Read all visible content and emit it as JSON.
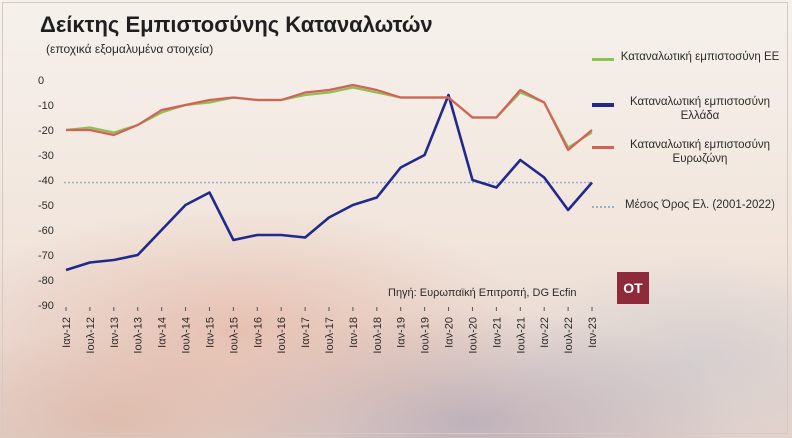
{
  "header": {
    "title": "Δείκτης Εμπιστοσύνης Καταναλωτών",
    "subtitle": "(εποχικά εξομαλυμένα στοιχεία)"
  },
  "source": "Πηγή: Ευρωπαϊκή Επιτροπή, DG Ecfin",
  "logo_text": "OT",
  "colors": {
    "eu": "#8cc152",
    "greece": "#1f2a8c",
    "eurozone": "#d4605a",
    "average": "#9ab0c6",
    "logo": "#8e2a3a"
  },
  "chart_data": {
    "type": "line",
    "title": "Δείκτης Εμπιστοσύνης Καταναλωτών",
    "subtitle": "(εποχικά εξομαλυμένα στοιχεία)",
    "y_ticks": [
      0,
      -10,
      -20,
      -30,
      -40,
      -50,
      -60,
      -70,
      -80,
      -90
    ],
    "ylim": [
      -90,
      0
    ],
    "grid": false,
    "legend_position": "right",
    "x_tick_labels": [
      "Ιαν-12",
      "Ιουλ-12",
      "Ιαν-13",
      "Ιουλ-13",
      "Ιαν-14",
      "Ιουλ-14",
      "Ιαν-15",
      "Ιουλ-15",
      "Ιαν-16",
      "Ιουλ-16",
      "Ιαν-17",
      "Ιουλ-17",
      "Ιαν-18",
      "Ιουλ-18",
      "Ιαν-19",
      "Ιουλ-19",
      "Ιαν-20",
      "Ιουλ-20",
      "Ιαν-21",
      "Ιουλ-21",
      "Ιαν-22",
      "Ιουλ-22",
      "Ιαν-23"
    ],
    "series": [
      {
        "name": "Καταναλωτική εμπιστοσύνη ΕΕ",
        "key": "eu",
        "points": [
          [
            "Ιαν-12",
            -20
          ],
          [
            "Ιουλ-12",
            -19
          ],
          [
            "Ιαν-13",
            -21
          ],
          [
            "Ιουλ-13",
            -18
          ],
          [
            "Ιαν-14",
            -13
          ],
          [
            "Ιουλ-14",
            -10
          ],
          [
            "Ιαν-15",
            -9
          ],
          [
            "Ιουλ-15",
            -7
          ],
          [
            "Ιαν-16",
            -8
          ],
          [
            "Ιουλ-16",
            -8
          ],
          [
            "Ιαν-17",
            -6
          ],
          [
            "Ιουλ-17",
            -5
          ],
          [
            "Ιαν-18",
            -3
          ],
          [
            "Ιουλ-18",
            -5
          ],
          [
            "Ιαν-19",
            -7
          ],
          [
            "Ιουλ-19",
            -7
          ],
          [
            "Ιαν-20",
            -7
          ],
          [
            "Ιουλ-20",
            -15
          ],
          [
            "Ιαν-21",
            -15
          ],
          [
            "Ιουλ-21",
            -5
          ],
          [
            "Ιαν-22",
            -9
          ],
          [
            "Ιουλ-22",
            -27
          ],
          [
            "Ιαν-23",
            -21
          ]
        ]
      },
      {
        "name": "Καταναλωτική εμπιστοσύνη Ελλάδα",
        "key": "greece",
        "points": [
          [
            "Ιαν-12",
            -76
          ],
          [
            "Ιουλ-12",
            -73
          ],
          [
            "Ιαν-13",
            -72
          ],
          [
            "Ιουλ-13",
            -70
          ],
          [
            "Ιαν-14",
            -60
          ],
          [
            "Ιουλ-14",
            -50
          ],
          [
            "Ιαν-15",
            -45
          ],
          [
            "Ιουλ-15",
            -64
          ],
          [
            "Ιαν-16",
            -62
          ],
          [
            "Ιουλ-16",
            -62
          ],
          [
            "Ιαν-17",
            -63
          ],
          [
            "Ιουλ-17",
            -55
          ],
          [
            "Ιαν-18",
            -50
          ],
          [
            "Ιουλ-18",
            -47
          ],
          [
            "Ιαν-19",
            -35
          ],
          [
            "Ιουλ-19",
            -30
          ],
          [
            "Ιαν-20",
            -6
          ],
          [
            "Ιουλ-20",
            -40
          ],
          [
            "Ιαν-21",
            -43
          ],
          [
            "Ιουλ-21",
            -32
          ],
          [
            "Ιαν-22",
            -39
          ],
          [
            "Ιουλ-22",
            -52
          ],
          [
            "Ιαν-23",
            -41
          ]
        ]
      },
      {
        "name": "Καταναλωτική εμπιστοσύνη Ευρωζώνη",
        "key": "eurozone",
        "points": [
          [
            "Ιαν-12",
            -20
          ],
          [
            "Ιουλ-12",
            -20
          ],
          [
            "Ιαν-13",
            -22
          ],
          [
            "Ιουλ-13",
            -18
          ],
          [
            "Ιαν-14",
            -12
          ],
          [
            "Ιουλ-14",
            -10
          ],
          [
            "Ιαν-15",
            -8
          ],
          [
            "Ιουλ-15",
            -7
          ],
          [
            "Ιαν-16",
            -8
          ],
          [
            "Ιουλ-16",
            -8
          ],
          [
            "Ιαν-17",
            -5
          ],
          [
            "Ιουλ-17",
            -4
          ],
          [
            "Ιαν-18",
            -2
          ],
          [
            "Ιουλ-18",
            -4
          ],
          [
            "Ιαν-19",
            -7
          ],
          [
            "Ιουλ-19",
            -7
          ],
          [
            "Ιαν-20",
            -7
          ],
          [
            "Ιουλ-20",
            -15
          ],
          [
            "Ιαν-21",
            -15
          ],
          [
            "Ιουλ-21",
            -4
          ],
          [
            "Ιαν-22",
            -9
          ],
          [
            "Ιουλ-22",
            -28
          ],
          [
            "Ιαν-23",
            -20
          ]
        ]
      }
    ],
    "reference_line": {
      "name": "Μέσος Όρος Ελ. (2001-2022)",
      "value": -41
    }
  }
}
